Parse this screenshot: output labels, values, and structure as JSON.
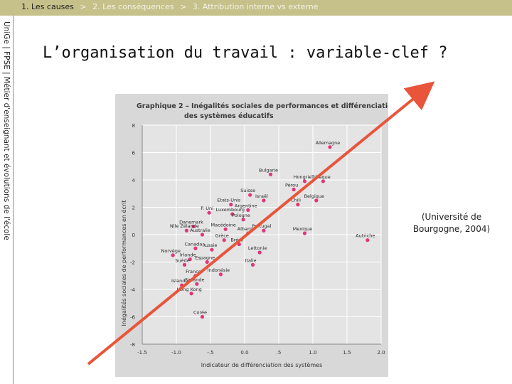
{
  "breadcrumb": {
    "item1": "1. Les causes",
    "sep1": ">",
    "item2": "2. Les conséquences",
    "sep2": ">",
    "item3": "3. Attribution interne vs externe"
  },
  "sidebar": {
    "text": "UniGe | FPSE | Métier d'enseignant et évolutions de l'école"
  },
  "slide": {
    "title": "L’organisation du travail : variable-clef ?",
    "caption": "(Université de Bourgogne, 2004)"
  },
  "colors": {
    "topbar": "#c6c18a",
    "points": "#e0357a",
    "arrow": "#e8553a",
    "figure_bg": "#d8d8d8"
  },
  "chart_data": {
    "type": "scatter",
    "title": "Graphique 2 – Inégalités sociales de performances et différenciation des systèmes éducatifs",
    "xlabel": "Indicateur de différenciation des systèmes",
    "ylabel": "Inégalités sociales de performances en écrit",
    "xlim": [
      -1.5,
      2.0
    ],
    "ylim": [
      -8,
      8
    ],
    "xticks": [
      "-1.5",
      "-1.0",
      "-.5",
      "0.0",
      ".5",
      "1.0",
      "1.5",
      "2.0"
    ],
    "yticks": [
      "8",
      "6",
      "4",
      "2",
      "0",
      "-2",
      "-4",
      "-6",
      "-8"
    ],
    "grid": true,
    "points": [
      {
        "label": "Allemagne",
        "x": 1.25,
        "y": 6.4
      },
      {
        "label": "Bulgarie",
        "x": 0.38,
        "y": 4.4
      },
      {
        "label": "Hongrie",
        "x": 0.88,
        "y": 3.9
      },
      {
        "label": "Tchèque",
        "x": 1.15,
        "y": 3.9
      },
      {
        "label": "Pérou",
        "x": 0.72,
        "y": 3.3
      },
      {
        "label": "Belgique",
        "x": 1.05,
        "y": 2.5
      },
      {
        "label": "Chili",
        "x": 0.78,
        "y": 2.2
      },
      {
        "label": "Suisse",
        "x": 0.08,
        "y": 2.9
      },
      {
        "label": "Israël",
        "x": 0.28,
        "y": 2.5
      },
      {
        "label": "Etats-Unis",
        "x": -0.2,
        "y": 2.2
      },
      {
        "label": "P. Uni",
        "x": -0.52,
        "y": 1.6
      },
      {
        "label": "Luxembourg",
        "x": -0.18,
        "y": 1.5
      },
      {
        "label": "Argentine",
        "x": 0.05,
        "y": 1.8
      },
      {
        "label": "Danemark",
        "x": -0.75,
        "y": 0.6
      },
      {
        "label": "Macédoine",
        "x": -0.28,
        "y": 0.4
      },
      {
        "label": "Pologne",
        "x": -0.02,
        "y": 1.1
      },
      {
        "label": "Portugal",
        "x": 0.28,
        "y": 0.3
      },
      {
        "label": "Nlle Zélande",
        "x": -0.85,
        "y": 0.3
      },
      {
        "label": "Australie",
        "x": -0.62,
        "y": 0.0
      },
      {
        "label": "Albanie",
        "x": 0.05,
        "y": 0.1
      },
      {
        "label": "Mexique",
        "x": 0.88,
        "y": 0.1
      },
      {
        "label": "Autriche",
        "x": 1.8,
        "y": -0.4
      },
      {
        "label": "Grèce",
        "x": -0.3,
        "y": -0.4
      },
      {
        "label": "Brésil",
        "x": -0.08,
        "y": -0.7
      },
      {
        "label": "Canada",
        "x": -0.72,
        "y": -1.0
      },
      {
        "label": "Russie",
        "x": -0.48,
        "y": -1.1
      },
      {
        "label": "Norvège",
        "x": -1.05,
        "y": -1.5
      },
      {
        "label": "Lettonie",
        "x": 0.22,
        "y": -1.3
      },
      {
        "label": "Irlande",
        "x": -0.8,
        "y": -1.8
      },
      {
        "label": "Suède",
        "x": -0.88,
        "y": -2.2
      },
      {
        "label": "Espagne",
        "x": -0.55,
        "y": -2.0
      },
      {
        "label": "Italie",
        "x": 0.12,
        "y": -2.2
      },
      {
        "label": "Indonésie",
        "x": -0.35,
        "y": -2.9
      },
      {
        "label": "France",
        "x": -0.72,
        "y": -3.0
      },
      {
        "label": "Islande",
        "x": -0.92,
        "y": -3.7
      },
      {
        "label": "Finlande",
        "x": -0.7,
        "y": -3.6
      },
      {
        "label": "Hong Kong",
        "x": -0.78,
        "y": -4.3
      },
      {
        "label": "Corée",
        "x": -0.62,
        "y": -6.0
      }
    ]
  }
}
